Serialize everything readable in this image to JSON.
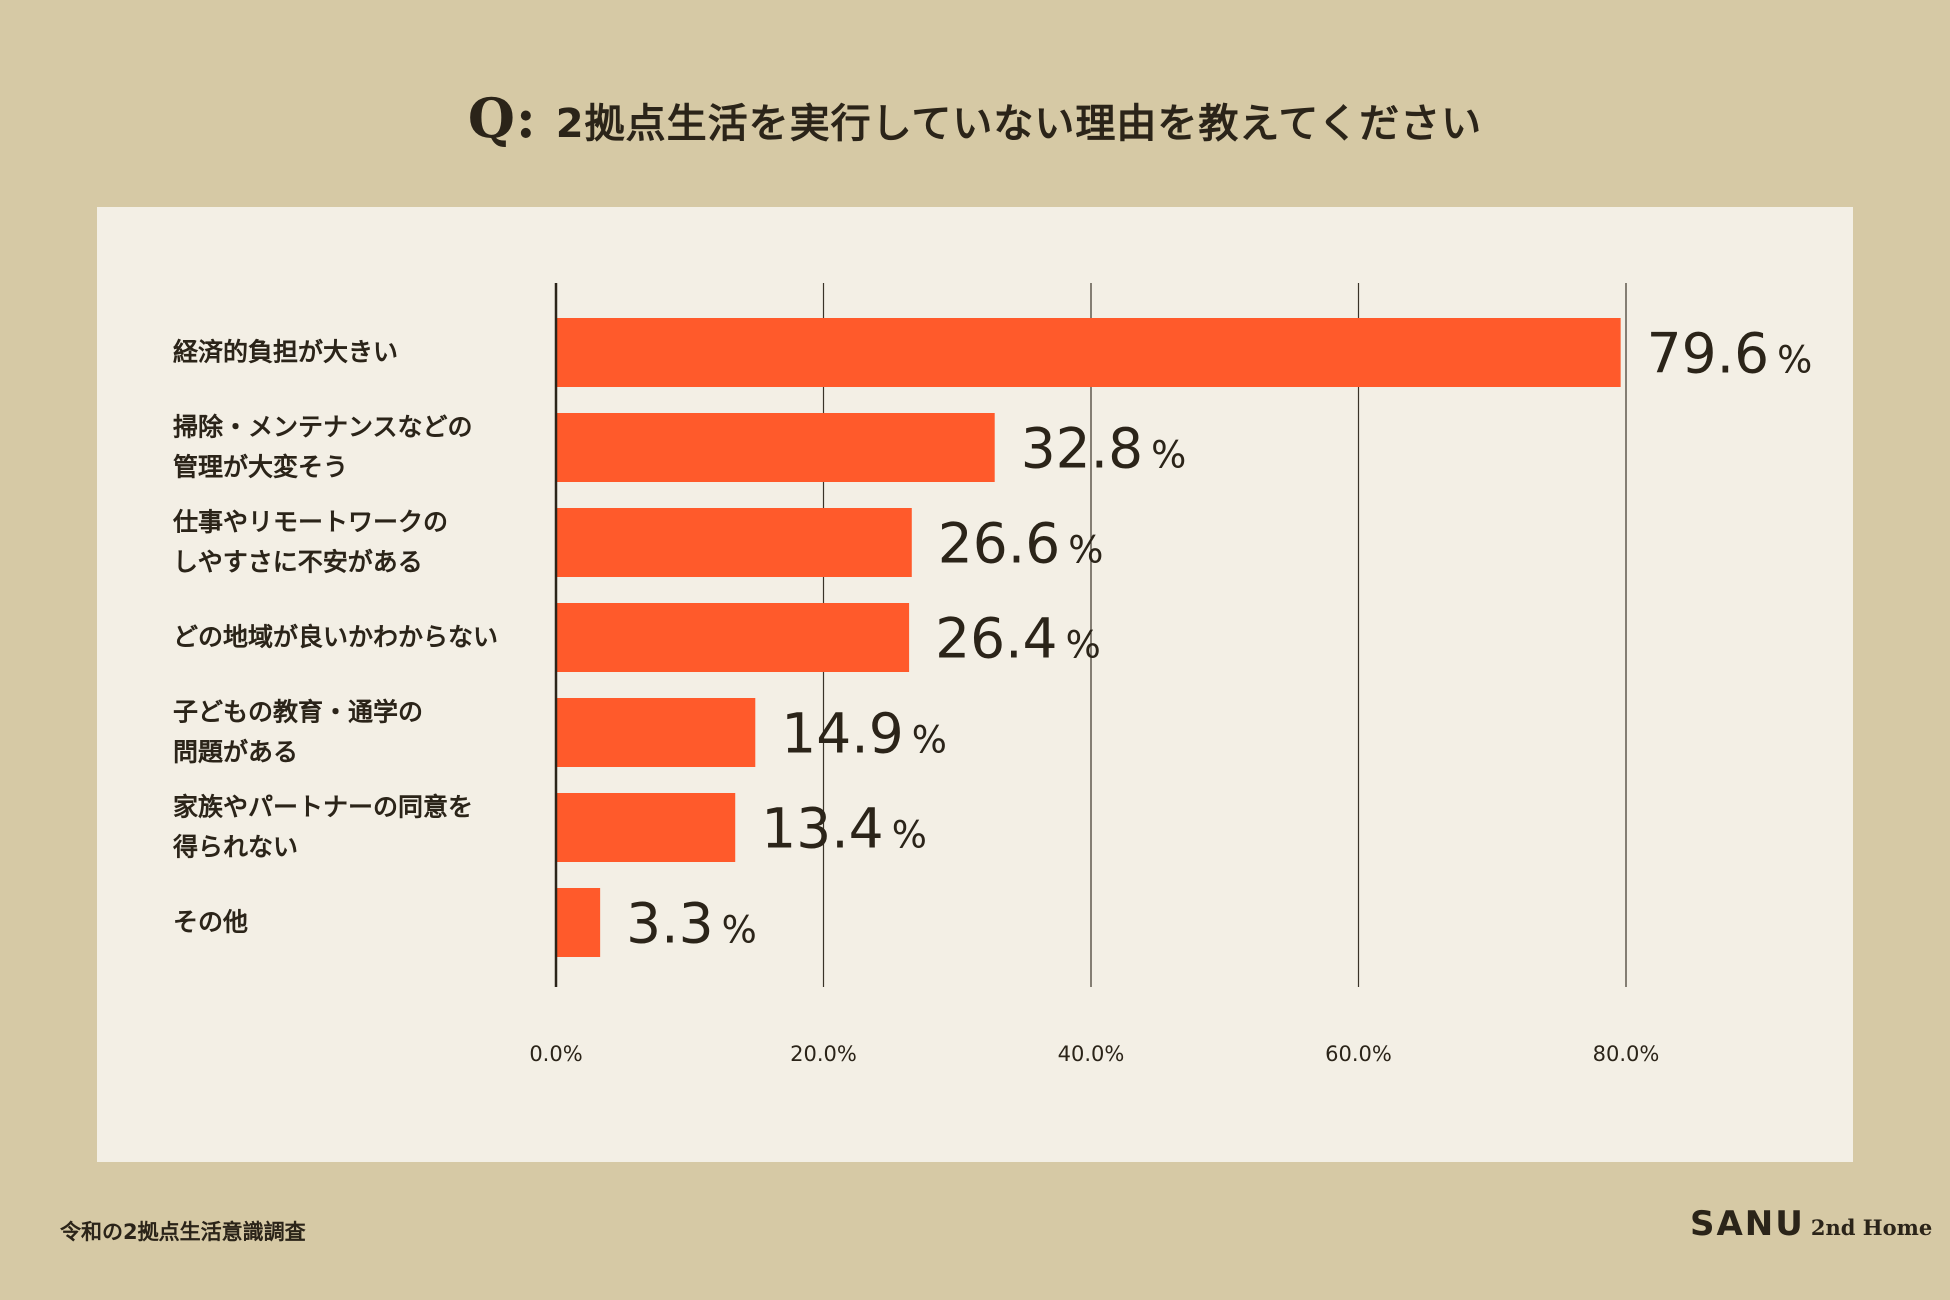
{
  "header": {
    "q_mark": "Q:",
    "question": "2拠点生活を実行していない理由を教えてください"
  },
  "footer": {
    "source": "令和の2拠点生活意識調査",
    "brand_main": "SANU",
    "brand_sub": "2nd Home"
  },
  "colors": {
    "bar": "#ff5a2b",
    "background": "#d6c9a5",
    "panel": "#f3efe5",
    "text": "#2b2419"
  },
  "chart_data": {
    "type": "bar",
    "orientation": "horizontal",
    "categories": [
      [
        "経済的負担が大きい"
      ],
      [
        "掃除・メンテナンスなどの",
        "管理が大変そう"
      ],
      [
        "仕事やリモートワークの",
        "しやすさに不安がある"
      ],
      [
        "どの地域が良いかわからない"
      ],
      [
        "子どもの教育・通学の",
        "問題がある"
      ],
      [
        "家族やパートナーの同意を",
        "得られない"
      ],
      [
        "その他"
      ]
    ],
    "values": [
      79.6,
      32.8,
      26.6,
      26.4,
      14.9,
      13.4,
      3.3
    ],
    "value_unit": "%",
    "xlim": [
      0,
      80
    ],
    "xticks": [
      0,
      20,
      40,
      60,
      80
    ],
    "xtick_labels": [
      "0.0%",
      "20.0%",
      "40.0%",
      "60.0%",
      "80.0%"
    ],
    "grid": true,
    "legend": "none"
  }
}
